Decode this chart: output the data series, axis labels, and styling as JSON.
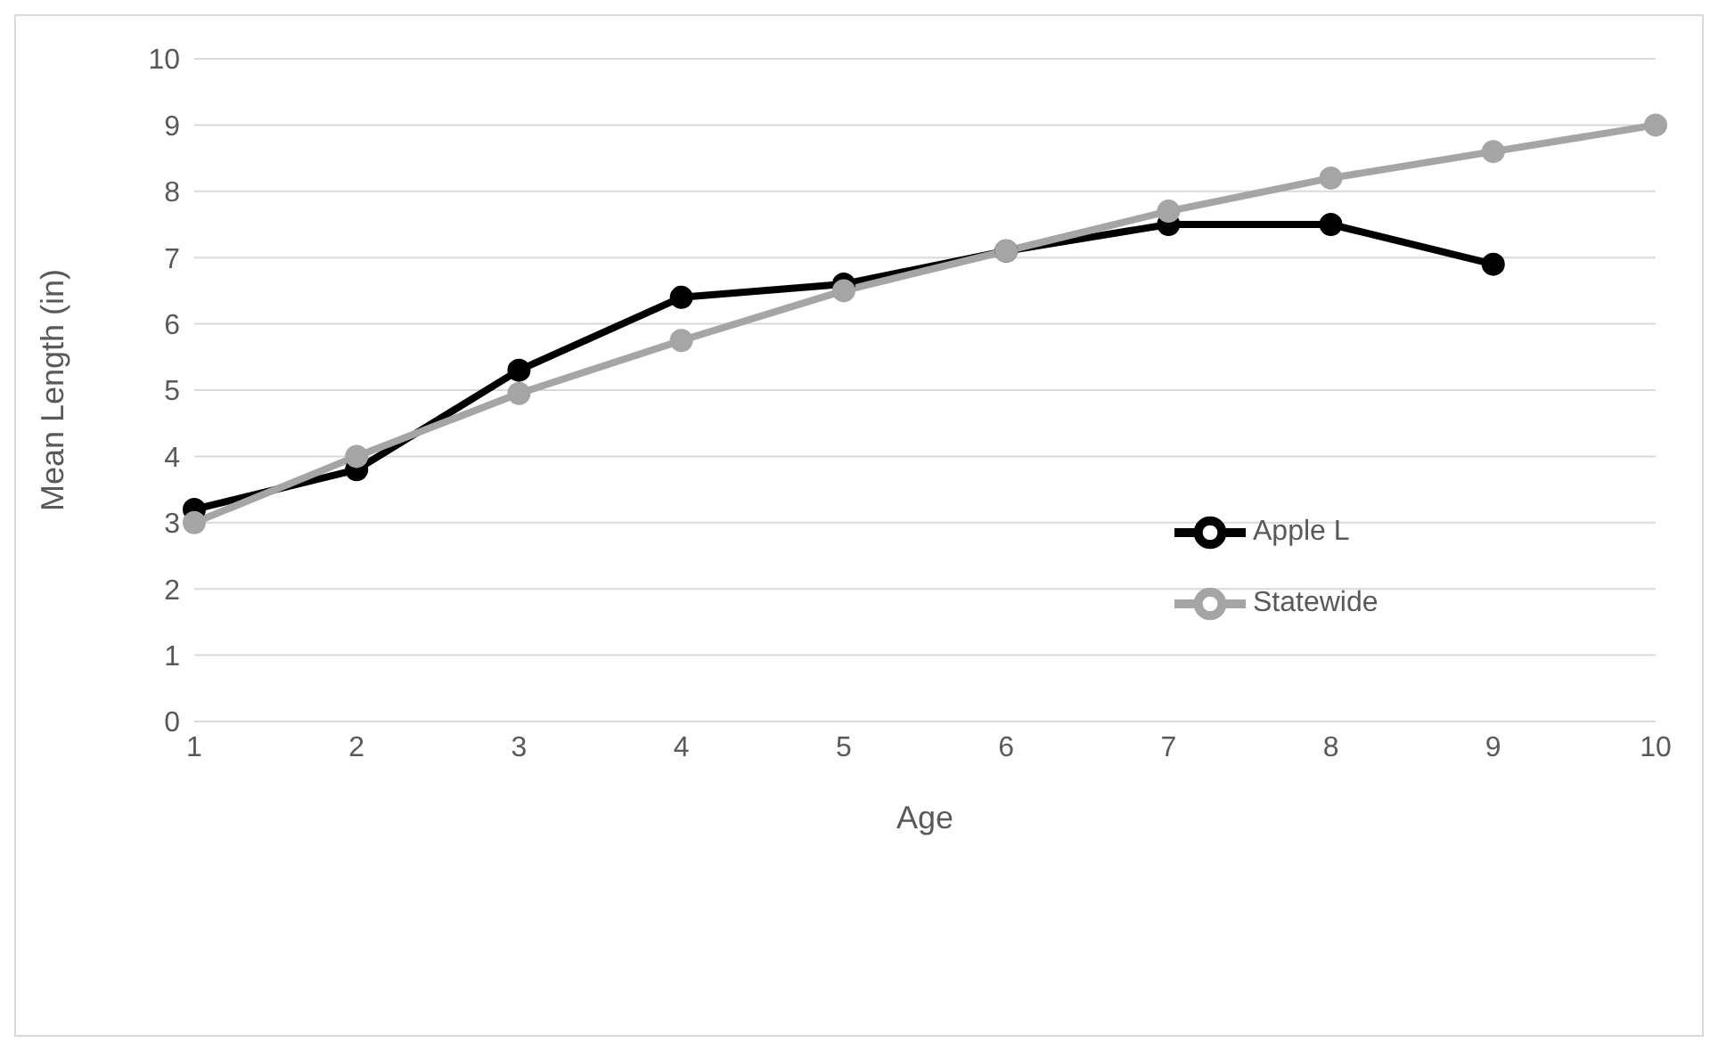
{
  "chart_data": {
    "type": "line",
    "xlabel": "Age",
    "ylabel": "Mean Length (in)",
    "categories": [
      "1",
      "2",
      "3",
      "4",
      "5",
      "6",
      "7",
      "8",
      "9",
      "10"
    ],
    "series": [
      {
        "name": "Apple L",
        "color": "#000000",
        "values": [
          3.2,
          3.8,
          5.3,
          6.4,
          6.6,
          7.1,
          7.5,
          7.5,
          6.9,
          null
        ]
      },
      {
        "name": "Statewide",
        "color": "#a5a5a5",
        "values": [
          3.0,
          4.0,
          4.95,
          5.75,
          6.5,
          7.1,
          7.7,
          8.2,
          8.6,
          9.0
        ]
      }
    ],
    "ylim": [
      0,
      10
    ],
    "yticks": [
      0,
      1,
      2,
      3,
      4,
      5,
      6,
      7,
      8,
      9,
      10
    ],
    "grid": "y",
    "legend": "right",
    "marker": "circle",
    "line_style": "solid"
  }
}
